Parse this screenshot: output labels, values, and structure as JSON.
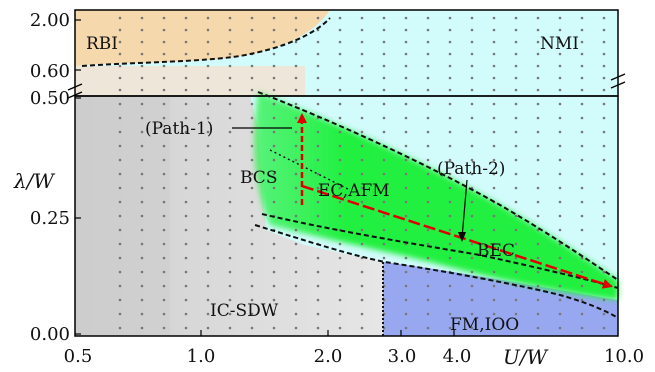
{
  "axes": {
    "xlabel": "U/W",
    "ylabel": "λ/W",
    "x_ticks": [
      "0.5",
      "1.0",
      "2.0",
      "3.0",
      "4.0",
      "10.0"
    ],
    "y_ticks_lower": [
      "0.00",
      "0.25",
      "0.50"
    ],
    "y_ticks_upper": [
      "0.60",
      "2.00"
    ]
  },
  "regions": {
    "rbi": "RBI",
    "nmi": "NMI",
    "bcs": "BCS",
    "ec_afm": "EC,AFM",
    "bec": "BEC",
    "ic_sdw": "IC-SDW",
    "fm_ioo": "FM,IOO"
  },
  "paths": {
    "path1": "(Path-1)",
    "path2": "(Path-2)"
  },
  "colors": {
    "rbi": "#f5d9ad",
    "nmi": "#d2fbfb",
    "superconducting": "#20f040",
    "ic_sdw": "#d6d6d6",
    "fm_ioo": "#98a8f0",
    "path_arrows": "#e00000"
  }
}
